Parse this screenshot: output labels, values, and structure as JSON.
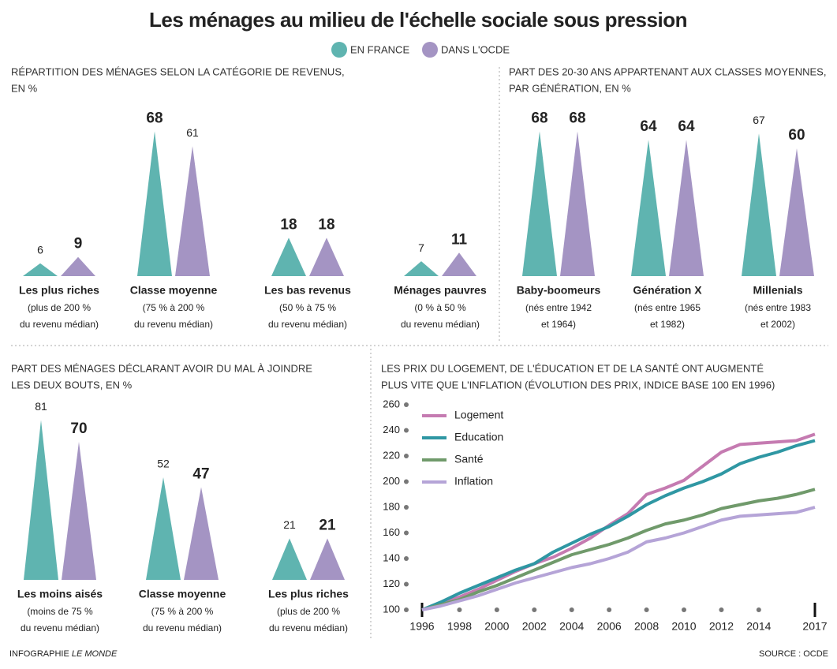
{
  "title": "Les ménages au milieu de l'échelle sociale sous pression",
  "credit": [
    "INFOGRAPHIE ",
    "LE MONDE"
  ],
  "source": "SOURCE : OCDE",
  "chart_data": [
    {
      "type": "triangle",
      "title": [
        "RÉPARTITION DES MÉNAGES SELON LA CATÉGORIE DE REVENUS,",
        "EN %"
      ],
      "categories": [
        "Les plus riches",
        "Classe moyenne",
        "Les bas revenus",
        "Ménages pauvres"
      ],
      "category_notes": [
        [
          "(plus de 200 %",
          "du revenu médian)"
        ],
        [
          "(75 % à 200 %",
          "du revenu médian)"
        ],
        [
          "(50 % à 75 %",
          "du revenu médian)"
        ],
        [
          "(0 % à 50 %",
          "du revenu médian)"
        ]
      ],
      "series": [
        {
          "name": "EN FRANCE",
          "color": "#5fb4b0",
          "values": [
            6,
            68,
            18,
            7
          ],
          "emphasis": [
            false,
            true,
            true,
            false
          ]
        },
        {
          "name": "DANS L'OCDE",
          "color": "#a494c3",
          "values": [
            9,
            61,
            18,
            11
          ],
          "emphasis": [
            true,
            false,
            true,
            true
          ]
        }
      ]
    },
    {
      "type": "triangle",
      "title": [
        "PART DES 20-30 ANS APPARTENANT AUX CLASSES MOYENNES,",
        "PAR GÉNÉRATION, EN %"
      ],
      "categories": [
        "Baby-boomeurs",
        "Génération X",
        "Millenials"
      ],
      "category_notes": [
        [
          "(nés entre 1942",
          "et 1964)"
        ],
        [
          "(nés entre 1965",
          "et 1982)"
        ],
        [
          "(nés entre 1983",
          "et 2002)"
        ]
      ],
      "series": [
        {
          "color": "#5fb4b0",
          "values": [
            68,
            64,
            67
          ],
          "emphasis": [
            true,
            true,
            false
          ]
        },
        {
          "color": "#a494c3",
          "values": [
            68,
            64,
            60
          ],
          "emphasis": [
            true,
            true,
            true
          ]
        }
      ]
    },
    {
      "type": "triangle",
      "title": [
        "PART DES MÉNAGES DÉCLARANT AVOIR DU MAL À JOINDRE",
        "LES DEUX BOUTS, EN %"
      ],
      "categories": [
        "Les moins aisés",
        "Classe moyenne",
        "Les plus riches"
      ],
      "category_notes": [
        [
          "(moins de 75 %",
          "du revenu médian)"
        ],
        [
          "(75 % à 200 %",
          "du revenu médian)"
        ],
        [
          "(plus de 200 %",
          "du revenu médian)"
        ]
      ],
      "series": [
        {
          "color": "#5fb4b0",
          "values": [
            81,
            52,
            21
          ],
          "emphasis": [
            false,
            false,
            false
          ]
        },
        {
          "color": "#a494c3",
          "values": [
            70,
            47,
            21
          ],
          "emphasis": [
            true,
            true,
            true
          ]
        }
      ]
    },
    {
      "type": "line",
      "title": [
        "LES PRIX DU LOGEMENT, DE L'ÉDUCATION ET DE LA SANTÉ ONT AUGMENTÉ",
        "PLUS VITE QUE L'INFLATION (ÉVOLUTION DES PRIX, INDICE BASE 100 EN 1996)"
      ],
      "x": [
        1996,
        1997,
        1998,
        1999,
        2000,
        2001,
        2002,
        2003,
        2004,
        2005,
        2006,
        2007,
        2008,
        2009,
        2010,
        2011,
        2012,
        2013,
        2014,
        2015,
        2016,
        2017
      ],
      "series": [
        {
          "name": "Logement",
          "color": "#c57bb1",
          "values": [
            100,
            105,
            110,
            116,
            123,
            130,
            136,
            141,
            148,
            156,
            166,
            175,
            190,
            195,
            201,
            212,
            223,
            229,
            230,
            231,
            232,
            237
          ]
        },
        {
          "name": "Education",
          "color": "#2f97a3",
          "values": [
            100,
            106,
            113,
            119,
            125,
            131,
            136,
            145,
            152,
            159,
            165,
            173,
            182,
            189,
            195,
            200,
            206,
            214,
            219,
            223,
            228,
            232
          ]
        },
        {
          "name": "Santé",
          "color": "#709a6b",
          "values": [
            100,
            104,
            108,
            114,
            119,
            125,
            131,
            137,
            143,
            147,
            151,
            156,
            162,
            167,
            170,
            174,
            179,
            182,
            185,
            187,
            190,
            194
          ]
        },
        {
          "name": "Inflation",
          "color": "#b5a4d7",
          "values": [
            100,
            103,
            107,
            111,
            116,
            121,
            125,
            129,
            133,
            136,
            140,
            145,
            153,
            156,
            160,
            165,
            170,
            173,
            174,
            175,
            176,
            180
          ]
        }
      ],
      "xlim": [
        1996,
        2017
      ],
      "xticks": [
        1996,
        1998,
        2000,
        2002,
        2004,
        2006,
        2008,
        2010,
        2012,
        2014,
        2017
      ],
      "ylim": [
        100,
        260
      ],
      "yticks": [
        100,
        120,
        140,
        160,
        180,
        200,
        220,
        240,
        260
      ]
    }
  ]
}
